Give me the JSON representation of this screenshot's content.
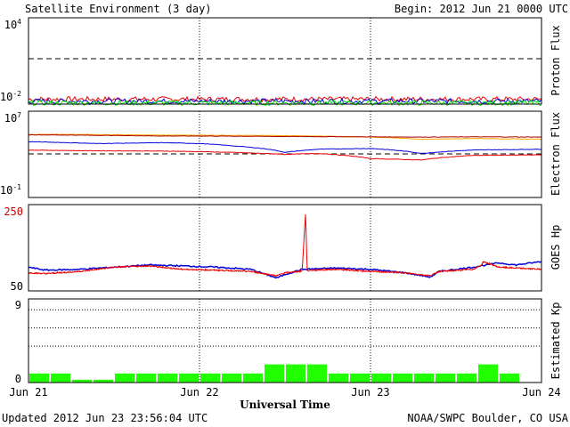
{
  "header": {
    "title": "Satellite Environment (3 day)",
    "begin": "Begin:  2012 Jun 21 0000 UTC"
  },
  "footer": {
    "updated": "Updated 2012 Jun 23 23:56:04 UTC",
    "credit": "NOAA/SWPC Boulder, CO USA"
  },
  "x_axis": {
    "label": "Universal Time",
    "ticks": [
      "Jun 21",
      "Jun 22",
      "Jun 23",
      "Jun 24"
    ]
  },
  "colors": {
    "red": "#ee0000",
    "blue": "#0000dd",
    "green": "#00ee00",
    "orange": "#ffa500",
    "darkred": "#aa0000",
    "kp_bar": "#22ff00"
  },
  "chart_data": [
    {
      "type": "line",
      "panel": "proton",
      "ylabel": "Proton Flux",
      "log_scale": true,
      "y_ticks": [
        "10^4",
        "10^-2"
      ],
      "ylim": [
        0.01,
        10000
      ],
      "threshold": 10,
      "x_range_days": [
        0,
        3
      ],
      "series": [
        {
          "color": "red",
          "level": 0.022
        },
        {
          "color": "blue",
          "level": 0.016
        },
        {
          "color": "green",
          "level": 0.012
        }
      ]
    },
    {
      "type": "line",
      "panel": "electron",
      "ylabel": "Electron Flux",
      "log_scale": true,
      "y_ticks": [
        "10^7",
        "10^-1"
      ],
      "ylim": [
        0.1,
        10000000
      ],
      "threshold": 1000,
      "x_range_days": [
        0,
        3
      ],
      "series": [
        {
          "color": "orange",
          "x": [
            0,
            0.3,
            0.8,
            1.0,
            1.5,
            2.0,
            2.3,
            2.6,
            3.0
          ],
          "y": [
            70000,
            70000,
            60000,
            60000,
            55000,
            40000,
            25000,
            30000,
            25000
          ]
        },
        {
          "color": "darkred",
          "x": [
            0,
            0.3,
            0.8,
            1.0,
            1.5,
            2.0,
            2.3,
            2.6,
            3.0
          ],
          "y": [
            65000,
            60000,
            50000,
            50000,
            45000,
            42000,
            40000,
            42000,
            40000
          ]
        },
        {
          "color": "blue",
          "x": [
            0,
            0.4,
            0.8,
            1.0,
            1.2,
            1.5,
            1.7,
            2.0,
            2.3,
            2.6,
            3.0
          ],
          "y": [
            15000,
            10000,
            12000,
            10000,
            6000,
            1500,
            3000,
            3500,
            1200,
            2500,
            3000
          ]
        },
        {
          "color": "red",
          "x": [
            0,
            0.3,
            0.8,
            1.0,
            1.2,
            1.5,
            1.7,
            2.0,
            2.3,
            2.6,
            3.0
          ],
          "y": [
            2500,
            2200,
            2000,
            1800,
            1500,
            1000,
            1200,
            400,
            300,
            800,
            900
          ]
        }
      ]
    },
    {
      "type": "line",
      "panel": "hp",
      "ylabel": "GOES Hp",
      "y_ticks": [
        "250",
        "50"
      ],
      "ylim": [
        50,
        250
      ],
      "x_range_days": [
        0,
        3
      ],
      "series": [
        {
          "color": "blue",
          "x": [
            0,
            0.1,
            0.3,
            0.5,
            0.7,
            0.9,
            1.1,
            1.3,
            1.45,
            1.5,
            1.6,
            1.8,
            2.0,
            2.2,
            2.35,
            2.4,
            2.6,
            2.75,
            2.85,
            3.0
          ],
          "y": [
            105,
            98,
            100,
            105,
            110,
            108,
            105,
            100,
            80,
            88,
            100,
            103,
            100,
            92,
            82,
            95,
            105,
            115,
            110,
            118
          ]
        },
        {
          "color": "red",
          "x": [
            0,
            0.1,
            0.3,
            0.5,
            0.7,
            0.9,
            1.1,
            1.3,
            1.45,
            1.5,
            1.6,
            1.62,
            1.63,
            1.65,
            1.8,
            2.0,
            2.2,
            2.35,
            2.4,
            2.6,
            2.65,
            2.66,
            2.75,
            3.0
          ],
          "y": [
            92,
            90,
            95,
            105,
            108,
            100,
            98,
            95,
            85,
            92,
            96,
            230,
            97,
            98,
            100,
            95,
            92,
            85,
            95,
            100,
            110,
            118,
            105,
            100
          ]
        }
      ]
    },
    {
      "type": "bar",
      "panel": "kp",
      "ylabel": "Estimated Kp",
      "y_ticks": [
        "9",
        "0"
      ],
      "ylim": [
        0,
        9
      ],
      "grid_levels": [
        4,
        6,
        8
      ],
      "values": [
        1,
        1,
        0.3,
        0.3,
        1,
        1,
        1,
        1,
        1,
        1,
        1,
        2,
        2,
        2,
        1,
        1,
        1,
        1,
        1,
        1,
        1,
        2,
        1,
        0
      ]
    }
  ]
}
